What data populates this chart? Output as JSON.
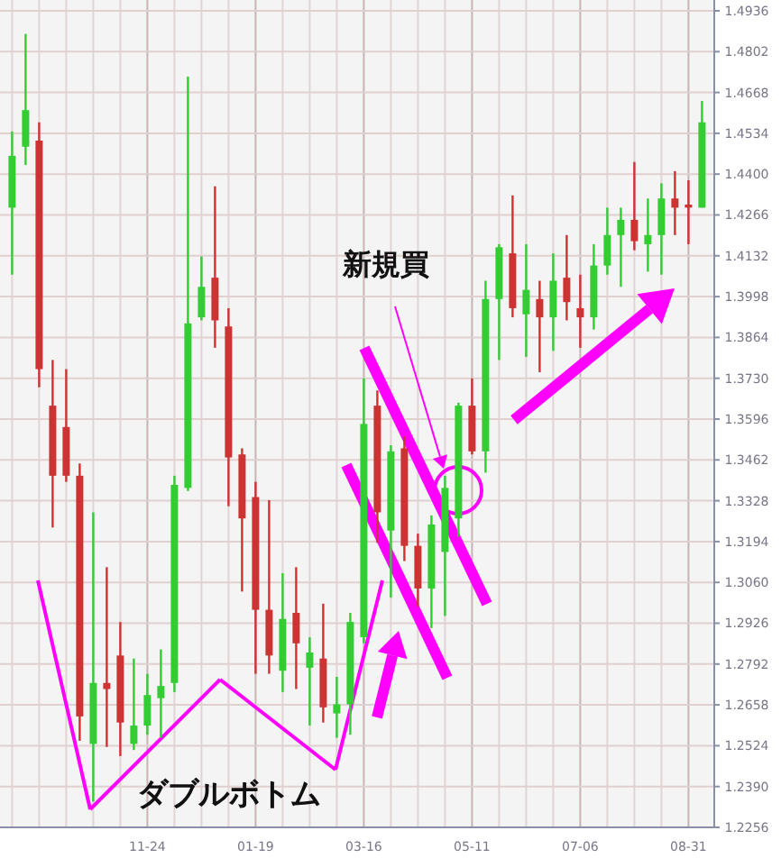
{
  "chart_data": {
    "type": "candlestick",
    "categories": [
      null,
      null,
      null,
      null,
      null,
      null,
      null,
      null,
      null,
      null,
      "11-24",
      null,
      null,
      null,
      null,
      null,
      null,
      null,
      "01-19",
      null,
      null,
      null,
      null,
      null,
      null,
      null,
      "03-16",
      null,
      null,
      null,
      null,
      null,
      null,
      null,
      "05-11",
      null,
      null,
      null,
      null,
      null,
      null,
      null,
      "07-06",
      null,
      null,
      null,
      null,
      null,
      null,
      null,
      "08-31",
      null
    ],
    "ohlc": [
      [
        1.429,
        1.454,
        1.407,
        1.446
      ],
      [
        1.449,
        1.486,
        1.443,
        1.461
      ],
      [
        1.451,
        1.457,
        1.37,
        1.376
      ],
      [
        1.364,
        1.379,
        1.324,
        1.341
      ],
      [
        1.357,
        1.376,
        1.339,
        1.341
      ],
      [
        1.341,
        1.345,
        1.254,
        1.262
      ],
      [
        1.253,
        1.329,
        1.234,
        1.273
      ],
      [
        1.273,
        1.311,
        1.252,
        1.271
      ],
      [
        1.282,
        1.293,
        1.249,
        1.26
      ],
      [
        1.253,
        1.281,
        1.251,
        1.259
      ],
      [
        1.259,
        1.276,
        1.256,
        1.269
      ],
      [
        1.268,
        1.284,
        1.255,
        1.272
      ],
      [
        1.273,
        1.341,
        1.27,
        1.338
      ],
      [
        1.337,
        1.472,
        1.336,
        1.391
      ],
      [
        1.393,
        1.413,
        1.392,
        1.403
      ],
      [
        1.406,
        1.436,
        1.383,
        1.392
      ],
      [
        1.39,
        1.396,
        1.331,
        1.347
      ],
      [
        1.348,
        1.35,
        1.303,
        1.327
      ],
      [
        1.334,
        1.339,
        1.276,
        1.297
      ],
      [
        1.297,
        1.333,
        1.276,
        1.282
      ],
      [
        1.277,
        1.309,
        1.27,
        1.294
      ],
      [
        1.296,
        1.311,
        1.271,
        1.286
      ],
      [
        1.278,
        1.288,
        1.259,
        1.283
      ],
      [
        1.281,
        1.299,
        1.26,
        1.265
      ],
      [
        1.263,
        1.275,
        1.255,
        1.266
      ],
      [
        1.266,
        1.296,
        1.256,
        1.293
      ],
      [
        1.288,
        1.373,
        1.286,
        1.358
      ],
      [
        1.364,
        1.369,
        1.319,
        1.329
      ],
      [
        1.323,
        1.351,
        1.301,
        1.349
      ],
      [
        1.35,
        1.354,
        1.313,
        1.318
      ],
      [
        1.318,
        1.322,
        1.298,
        1.304
      ],
      [
        1.304,
        1.328,
        1.291,
        1.325
      ],
      [
        1.316,
        1.341,
        1.295,
        1.337
      ],
      [
        1.327,
        1.365,
        1.321,
        1.364
      ],
      [
        1.364,
        1.373,
        1.348,
        1.349
      ],
      [
        1.349,
        1.405,
        1.342,
        1.399
      ],
      [
        1.399,
        1.417,
        1.379,
        1.416
      ],
      [
        1.414,
        1.433,
        1.393,
        1.396
      ],
      [
        1.394,
        1.417,
        1.38,
        1.402
      ],
      [
        1.399,
        1.405,
        1.375,
        1.393
      ],
      [
        1.393,
        1.414,
        1.382,
        1.405
      ],
      [
        1.406,
        1.42,
        1.392,
        1.398
      ],
      [
        1.396,
        1.407,
        1.383,
        1.393
      ],
      [
        1.393,
        1.417,
        1.389,
        1.41
      ],
      [
        1.41,
        1.429,
        1.407,
        1.42
      ],
      [
        1.42,
        1.429,
        1.403,
        1.425
      ],
      [
        1.425,
        1.444,
        1.415,
        1.418
      ],
      [
        1.417,
        1.432,
        1.408,
        1.42
      ],
      [
        1.42,
        1.437,
        1.407,
        1.432
      ],
      [
        1.432,
        1.441,
        1.42,
        1.429
      ],
      [
        1.43,
        1.438,
        1.417,
        1.429
      ],
      [
        1.429,
        1.464,
        1.429,
        1.457
      ]
    ],
    "colors": [
      "#33cc33",
      "#33cc33",
      "#cc3333",
      "#cc3333",
      "#cc3333",
      "#cc3333",
      "#33cc33",
      "#cc3333",
      "#cc3333",
      "#33cc33",
      "#33cc33",
      "#33cc33",
      "#33cc33",
      "#33cc33",
      "#33cc33",
      "#cc3333",
      "#cc3333",
      "#cc3333",
      "#cc3333",
      "#cc3333",
      "#33cc33",
      "#cc3333",
      "#33cc33",
      "#cc3333",
      "#33cc33",
      "#33cc33",
      "#33cc33",
      "#cc3333",
      "#33cc33",
      "#cc3333",
      "#cc3333",
      "#33cc33",
      "#33cc33",
      "#33cc33",
      "#cc3333",
      "#33cc33",
      "#33cc33",
      "#cc3333",
      "#33cc33",
      "#cc3333",
      "#33cc33",
      "#cc3333",
      "#cc3333",
      "#33cc33",
      "#33cc33",
      "#33cc33",
      "#cc3333",
      "#33cc33",
      "#33cc33",
      "#cc3333",
      "#cc3333",
      "#33cc33"
    ],
    "ylim": [
      1.2256,
      1.4936
    ],
    "yticks": [
      1.2256,
      {
        "value": 1.239,
        "label": "1.2390"
      },
      1.2524,
      1.2658,
      1.2792,
      1.2926,
      {
        "value": 1.306,
        "label": "1.3060"
      },
      1.3194,
      1.3328,
      1.3462,
      1.3596,
      {
        "value": 1.373,
        "label": "1.3730"
      },
      1.3864,
      1.3998,
      1.4132,
      1.4266,
      {
        "value": 1.44,
        "label": "1.4400"
      },
      1.4534,
      1.4668,
      1.4802,
      1.4936
    ],
    "grid": true,
    "annotations": [
      "新規買",
      "ダブルボトム"
    ]
  }
}
